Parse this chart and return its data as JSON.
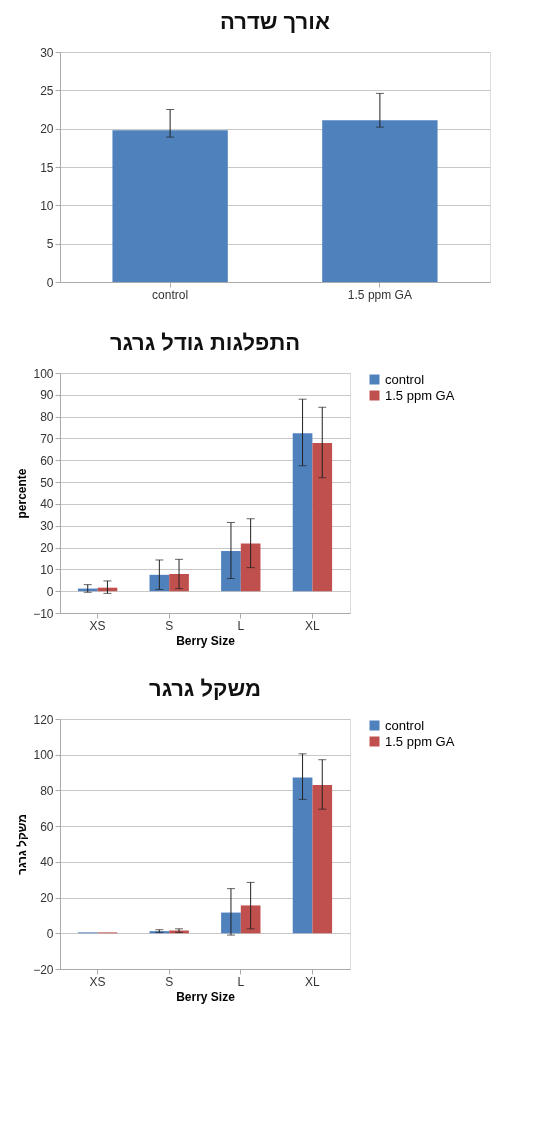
{
  "chart_data": [
    {
      "type": "bar",
      "title": "אורך שדרה",
      "categories": [
        "control",
        "1.5 ppm GA"
      ],
      "values": [
        19.8,
        21.1
      ],
      "color": "#4f81bd",
      "errors": [
        [
          18.9,
          22.5
        ],
        [
          20.2,
          24.6
        ]
      ],
      "ylim": [
        0,
        30
      ],
      "yticks": [
        0,
        5,
        10,
        15,
        20,
        25,
        30
      ],
      "grid": "y",
      "legend": false
    },
    {
      "type": "bar",
      "title": "התפלגות גודל גרגר",
      "xlabel": "Berry Size",
      "ylabel": "percente",
      "categories": [
        "XS",
        "S",
        "L",
        "XL"
      ],
      "series": [
        {
          "name": "control",
          "color": "#4f81bd",
          "values": [
            1.2,
            7.5,
            18.4,
            72.4
          ],
          "errors": [
            [
              -0.5,
              3
            ],
            [
              0.8,
              14.3
            ],
            [
              5.8,
              31.5
            ],
            [
              57.5,
              88
            ]
          ]
        },
        {
          "name": "1.5 ppm GA",
          "color": "#c0504d",
          "values": [
            1.6,
            7.9,
            21.8,
            67.9
          ],
          "errors": [
            [
              -1,
              4.7
            ],
            [
              1.2,
              14.6
            ],
            [
              10.8,
              33.2
            ],
            [
              52,
              84.3
            ]
          ]
        }
      ],
      "ylim": [
        -10,
        100
      ],
      "yticks": [
        -10,
        0,
        10,
        20,
        30,
        40,
        50,
        60,
        70,
        80,
        90,
        100
      ],
      "grid": "y",
      "legend": "right"
    },
    {
      "type": "bar",
      "title": "משקל גרגר",
      "xlabel": "Berry Size",
      "ylabel": "משקל גרגר",
      "categories": [
        "XS",
        "S",
        "L",
        "XL"
      ],
      "series": [
        {
          "name": "control",
          "color": "#4f81bd",
          "values": [
            0.5,
            1.2,
            11.6,
            87.2
          ],
          "errors": [
            null,
            [
              0.5,
              2
            ],
            [
              -1,
              25
            ],
            [
              75,
              100.5
            ]
          ]
        },
        {
          "name": "1.5 ppm GA",
          "color": "#c0504d",
          "values": [
            0.5,
            1.5,
            15.6,
            83.1
          ],
          "errors": [
            null,
            [
              0.5,
              2.5
            ],
            [
              2.5,
              28.5
            ],
            [
              69.5,
              97.2
            ]
          ]
        }
      ],
      "ylim": [
        -20,
        120
      ],
      "yticks": [
        -20,
        0,
        20,
        40,
        60,
        80,
        100,
        120
      ],
      "grid": "y",
      "legend": "right"
    }
  ]
}
